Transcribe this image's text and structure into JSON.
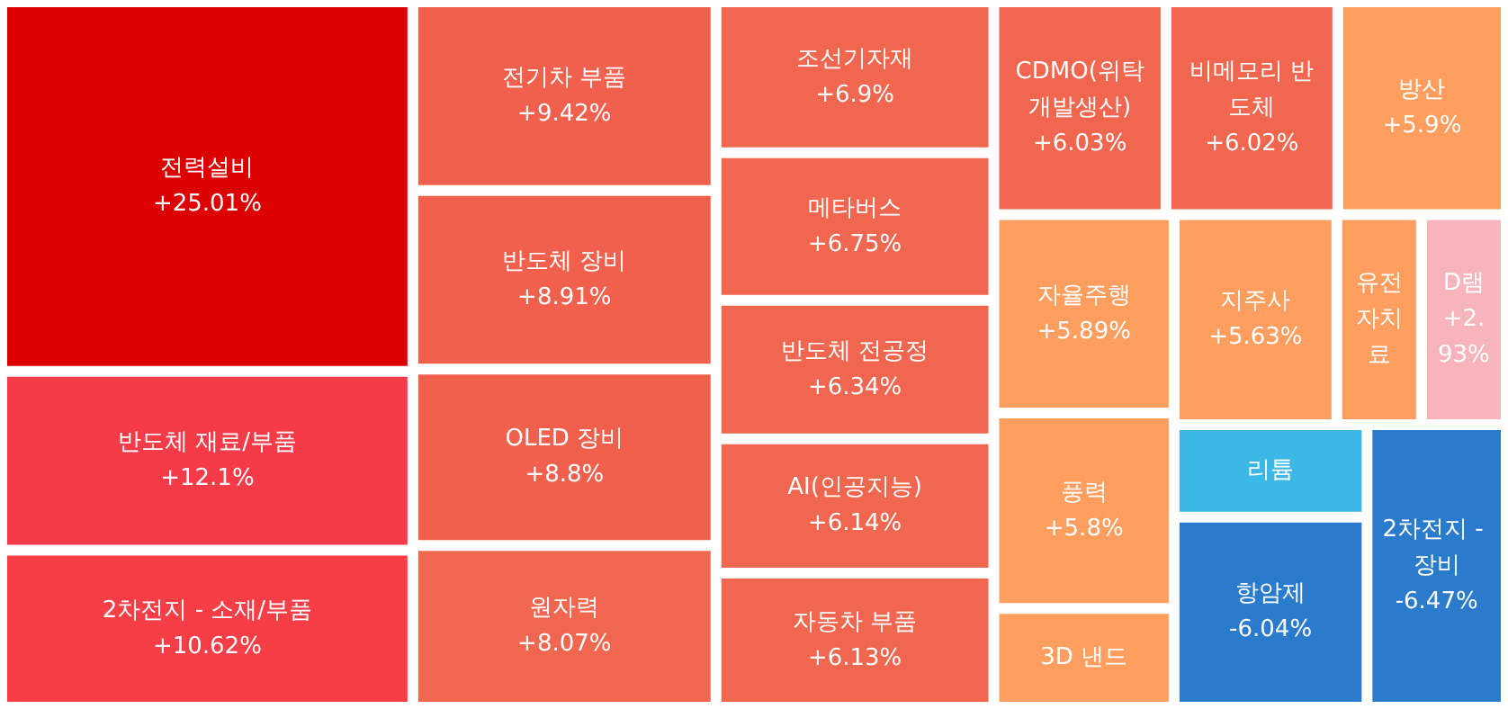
{
  "chart_data": {
    "type": "other",
    "categories": [
      "전력설비",
      "반도체 재료/부품",
      "2차전지 - 소재/부품",
      "전기차 부품",
      "반도체 장비",
      "OLED 장비",
      "원자력",
      "조선기자재",
      "메타버스",
      "반도체 전공정",
      "AI(인공지능)",
      "자동차 부품",
      "CDMO(위탁개발생산)",
      "비메모리 반도체",
      "방산",
      "자율주행",
      "풍력",
      "3D 낸드",
      "지주사",
      "유전자치료",
      "D램",
      "리튬",
      "항암제",
      "2차전지 - 장비"
    ],
    "values": [
      25.01,
      12.1,
      10.62,
      9.42,
      8.91,
      8.8,
      8.07,
      6.9,
      6.75,
      6.34,
      6.14,
      6.13,
      6.03,
      6.02,
      5.9,
      5.89,
      5.8,
      null,
      5.63,
      null,
      2.93,
      null,
      -6.04,
      -6.47
    ],
    "value_labels": [
      "+25.01%",
      "+12.1%",
      "+10.62%",
      "+9.42%",
      "+8.91%",
      "+8.8%",
      "+8.07%",
      "+6.9%",
      "+6.75%",
      "+6.34%",
      "+6.14%",
      "+6.13%",
      "+6.03%",
      "+6.02%",
      "+5.9%",
      "+5.89%",
      "+5.8%",
      null,
      "+5.63%",
      null,
      "+2.93%",
      null,
      "-6.04%",
      "-6.47%"
    ],
    "colors": [
      "#dd0000",
      "#f53b47",
      "#f73d46",
      "#f0604d",
      "#f0604d",
      "#f0604d",
      "#f0664e",
      "#f0664e",
      "#f0664e",
      "#f0664e",
      "#f0664e",
      "#f0664e",
      "#f0664e",
      "#f0664e",
      "#ff9e5e",
      "#ff9e5e",
      "#ff9e5e",
      "#ff9e5e",
      "#ff9e5e",
      "#ff9e5e",
      "#f7b5bb",
      "#3bb8e6",
      "#2a7bcc",
      "#2a7bcc"
    ]
  }
}
